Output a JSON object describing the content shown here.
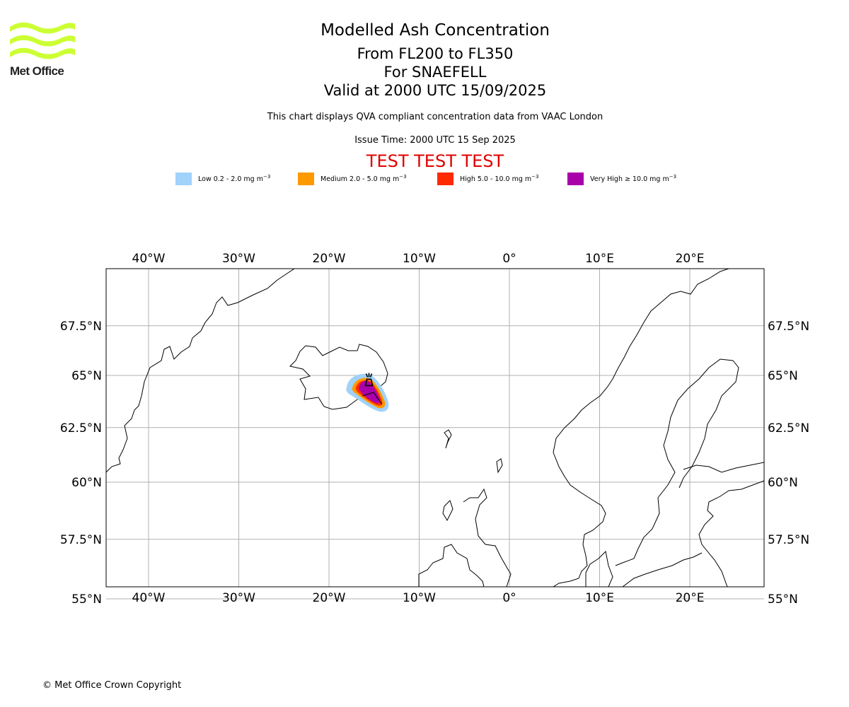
{
  "branding": {
    "logo_text": "Met Office",
    "logo_color": "#ccff33"
  },
  "titles": {
    "title": "Modelled Ash Concentration",
    "levels": "From FL200 to FL350",
    "volcano": "For SNAEFELL",
    "valid": "Valid at 2000 UTC 15/09/2025",
    "description": "This chart displays QVA compliant concentration data from VAAC London",
    "issue_time": "Issue Time: 2000 UTC 15 Sep 2025",
    "test_banner": "TEST TEST TEST",
    "test_banner_color": "#e10000"
  },
  "legend": [
    {
      "label": "Low 0.2 - 2.0 mg m",
      "exp": "−3",
      "color": "#a0d2fa"
    },
    {
      "label": "Medium 2.0 - 5.0 mg m",
      "exp": "−3",
      "color": "#ff9900"
    },
    {
      "label": "High 5.0 - 10.0 mg m",
      "exp": "−3",
      "color": "#ff2a00"
    },
    {
      "label": "Very High ≥ 10.0 mg m",
      "exp": "−3",
      "color": "#aa00aa"
    }
  ],
  "map": {
    "lon_range": [
      -45,
      28
    ],
    "lat_range": [
      53.5,
      70
    ],
    "lon_ticks": [
      {
        "value": -40,
        "label": "40°W"
      },
      {
        "value": -30,
        "label": "30°W"
      },
      {
        "value": -20,
        "label": "20°W"
      },
      {
        "value": -10,
        "label": "10°W"
      },
      {
        "value": 0,
        "label": "0°"
      },
      {
        "value": 10,
        "label": "10°E"
      },
      {
        "value": 20,
        "label": "20°E"
      }
    ],
    "lat_ticks": [
      {
        "value": 67.5,
        "label": "67.5°N"
      },
      {
        "value": 65,
        "label": "65°N"
      },
      {
        "value": 62.5,
        "label": "62.5°N"
      },
      {
        "value": 60,
        "label": "60°N"
      },
      {
        "value": 57.5,
        "label": "57.5°N"
      },
      {
        "value": 55,
        "label": "55°N"
      }
    ],
    "gridlines": true,
    "gridline_color": "#b0b0b0",
    "volcano_location": {
      "lon": -15.6,
      "lat": 64.8
    }
  },
  "footer": {
    "copyright": "© Met Office Crown Copyright"
  }
}
